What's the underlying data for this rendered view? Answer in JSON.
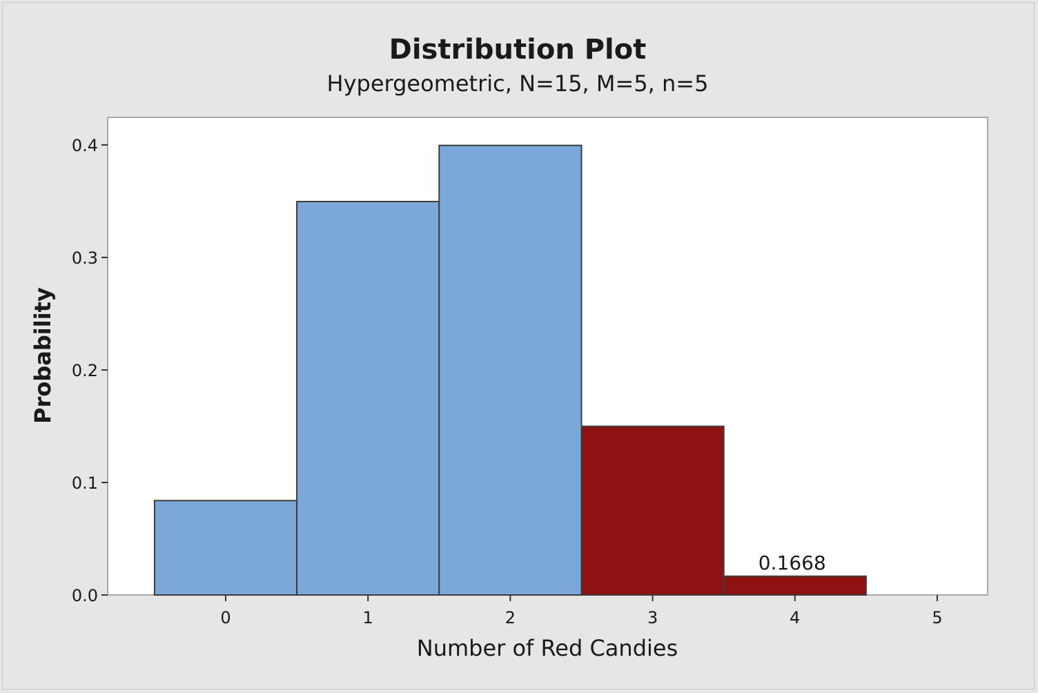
{
  "chart_data": {
    "type": "bar",
    "title": "Distribution Plot",
    "subtitle": "Hypergeometric, N=15, M=5, n=5",
    "xlabel": "Number of Red Candies",
    "ylabel": "Probability",
    "categories": [
      "0",
      "1",
      "2",
      "3",
      "4",
      "5"
    ],
    "x": [
      0,
      1,
      2,
      3,
      4,
      5
    ],
    "values": [
      0.0839,
      0.3497,
      0.3996,
      0.1499,
      0.0167,
      0.0003
    ],
    "shaded_from": 3,
    "shaded_area_label": "0.1668",
    "xlim": [
      -1,
      5.05
    ],
    "ylim": [
      0,
      0.42
    ],
    "yticks": [
      "0.0",
      "0.1",
      "0.2",
      "0.3",
      "0.4"
    ],
    "ytick_values": [
      0,
      0.1,
      0.2,
      0.3,
      0.4
    ],
    "grid": false,
    "colors": {
      "bar": "#7ba7d9",
      "shaded": "#8f1212",
      "bar_edge": "#3c3c3c",
      "plot_bg": "#ffffff",
      "frame_bg": "#e6e6e6"
    }
  }
}
